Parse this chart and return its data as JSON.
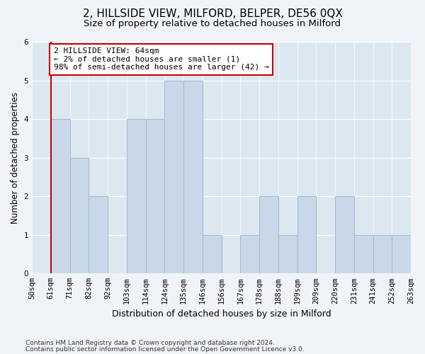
{
  "title": "2, HILLSIDE VIEW, MILFORD, BELPER, DE56 0QX",
  "subtitle": "Size of property relative to detached houses in Milford",
  "xlabel": "Distribution of detached houses by size in Milford",
  "ylabel": "Number of detached properties",
  "footnote1": "Contains HM Land Registry data © Crown copyright and database right 2024.",
  "footnote2": "Contains public sector information licensed under the Open Government Licence v3.0.",
  "bins": [
    "50sqm",
    "61sqm",
    "71sqm",
    "82sqm",
    "92sqm",
    "103sqm",
    "114sqm",
    "124sqm",
    "135sqm",
    "146sqm",
    "156sqm",
    "167sqm",
    "178sqm",
    "188sqm",
    "199sqm",
    "209sqm",
    "220sqm",
    "231sqm",
    "241sqm",
    "252sqm",
    "263sqm"
  ],
  "values": [
    0,
    4,
    3,
    2,
    0,
    4,
    4,
    5,
    5,
    1,
    0,
    1,
    2,
    1,
    2,
    0,
    2,
    1,
    1,
    1
  ],
  "bar_color": "#c8d8e8",
  "bar_edgecolor": "#a0b8d0",
  "vline_color": "#cc0000",
  "vline_x_index": 1,
  "annotation_text": "2 HILLSIDE VIEW: 64sqm\n← 2% of detached houses are smaller (1)\n98% of semi-detached houses are larger (42) →",
  "annotation_box_edgecolor": "#cc0000",
  "annotation_box_facecolor": "#ffffff",
  "ylim": [
    0,
    6
  ],
  "yticks": [
    0,
    1,
    2,
    3,
    4,
    5,
    6
  ],
  "bg_color": "#e8eef4",
  "plot_bg_color": "#dce8f0",
  "title_fontsize": 11,
  "subtitle_fontsize": 9.5,
  "xlabel_fontsize": 9,
  "ylabel_fontsize": 8.5,
  "tick_fontsize": 7.5,
  "annotation_fontsize": 8,
  "footnote_fontsize": 6.5
}
